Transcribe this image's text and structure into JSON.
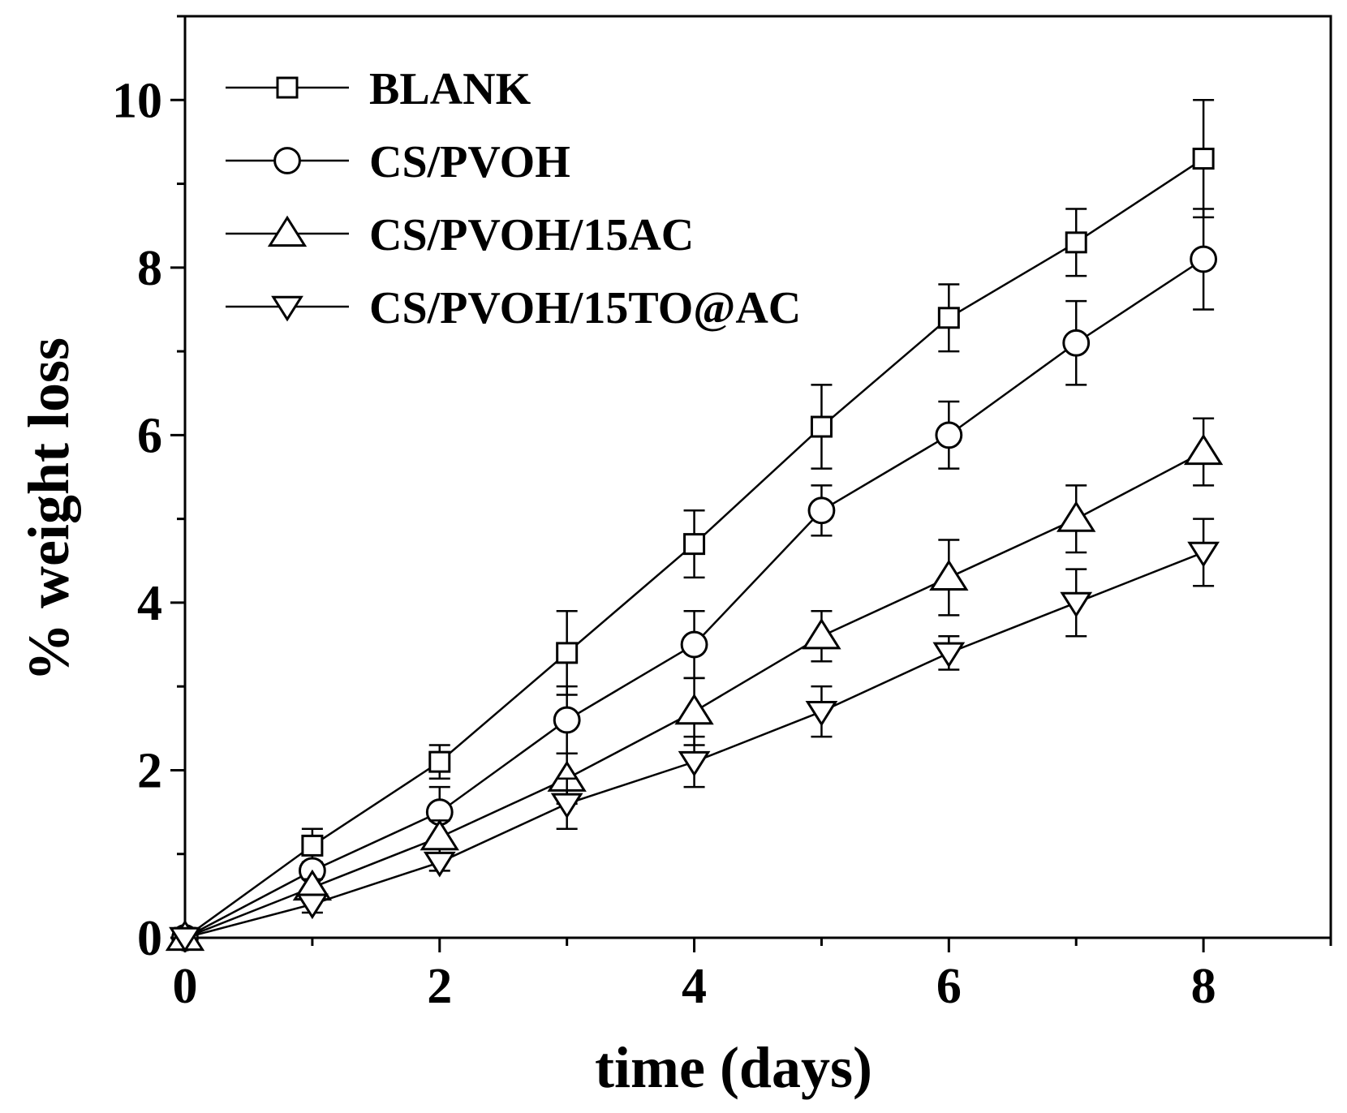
{
  "chart_data": {
    "type": "line",
    "title": "",
    "xlabel": "time (days)",
    "ylabel": "% weight loss",
    "xlim": [
      0,
      9
    ],
    "ylim": [
      0,
      11
    ],
    "xticks": [
      0,
      2,
      4,
      6,
      8
    ],
    "xtick_labels": [
      "0",
      "2",
      "4",
      "6",
      "8"
    ],
    "yticks": [
      0,
      2,
      4,
      6,
      8,
      10
    ],
    "ytick_labels": [
      "0",
      "2",
      "4",
      "6",
      "8",
      "10"
    ],
    "legend_position": "top-left",
    "grid": false,
    "series": [
      {
        "name": "BLANK",
        "marker": "square",
        "x": [
          0,
          1,
          2,
          3,
          4,
          5,
          6,
          7,
          8
        ],
        "y": [
          0,
          1.1,
          2.1,
          3.4,
          4.7,
          6.1,
          7.4,
          8.3,
          9.3
        ],
        "error": [
          0,
          0.2,
          0.2,
          0.5,
          0.4,
          0.5,
          0.4,
          0.4,
          0.7
        ]
      },
      {
        "name": "CS/PVOH",
        "marker": "circle",
        "x": [
          0,
          1,
          2,
          3,
          4,
          5,
          6,
          7,
          8
        ],
        "y": [
          0,
          0.8,
          1.5,
          2.6,
          3.5,
          5.1,
          6.0,
          7.1,
          8.1
        ],
        "error": [
          0,
          0.1,
          0.3,
          0.4,
          0.4,
          0.3,
          0.4,
          0.5,
          0.6
        ]
      },
      {
        "name": "CS/PVOH/15AC",
        "marker": "triangle-up",
        "x": [
          0,
          1,
          2,
          3,
          4,
          5,
          6,
          7,
          8
        ],
        "y": [
          0,
          0.6,
          1.2,
          1.9,
          2.7,
          3.6,
          4.3,
          5.0,
          5.8
        ],
        "error": [
          0,
          0.1,
          0.2,
          0.3,
          0.4,
          0.3,
          0.45,
          0.4,
          0.4
        ]
      },
      {
        "name": "CS/PVOH/15TO@AC",
        "marker": "triangle-down",
        "x": [
          0,
          1,
          2,
          3,
          4,
          5,
          6,
          7,
          8
        ],
        "y": [
          0,
          0.4,
          0.9,
          1.6,
          2.1,
          2.7,
          3.4,
          4.0,
          4.6
        ],
        "error": [
          0,
          0.1,
          0.1,
          0.3,
          0.3,
          0.3,
          0.2,
          0.4,
          0.4
        ]
      }
    ]
  }
}
